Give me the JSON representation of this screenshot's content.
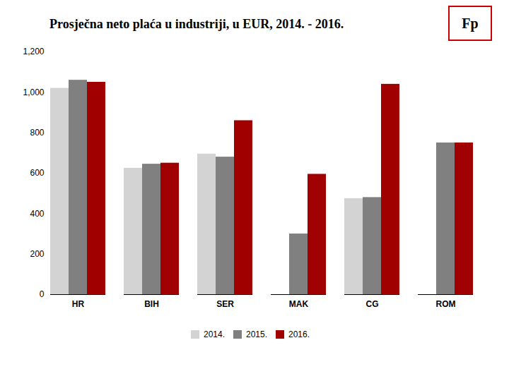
{
  "chart_data": {
    "type": "bar",
    "title": "Prosječna neto plaća u industriji, u EUR, 2014. - 2016.",
    "categories": [
      "HR",
      "BIH",
      "SER",
      "MAK",
      "CG",
      "ROM"
    ],
    "series": [
      {
        "name": "2014.",
        "color": "#d3d3d3",
        "values": [
          1020,
          625,
          695,
          0,
          475,
          0
        ]
      },
      {
        "name": "2015.",
        "color": "#808080",
        "values": [
          1060,
          645,
          680,
          300,
          480,
          750
        ]
      },
      {
        "name": "2016.",
        "color": "#a00000",
        "values": [
          1050,
          650,
          860,
          595,
          1040,
          750
        ]
      }
    ],
    "ylim": [
      0,
      1200
    ],
    "yticks": [
      0,
      200,
      400,
      600,
      800,
      {
        "value": 1000,
        "label": "1,000"
      },
      {
        "value": 1200,
        "label": "1,200"
      }
    ],
    "grid": false,
    "legend": "bottom",
    "annotations": [
      "Fp"
    ]
  }
}
